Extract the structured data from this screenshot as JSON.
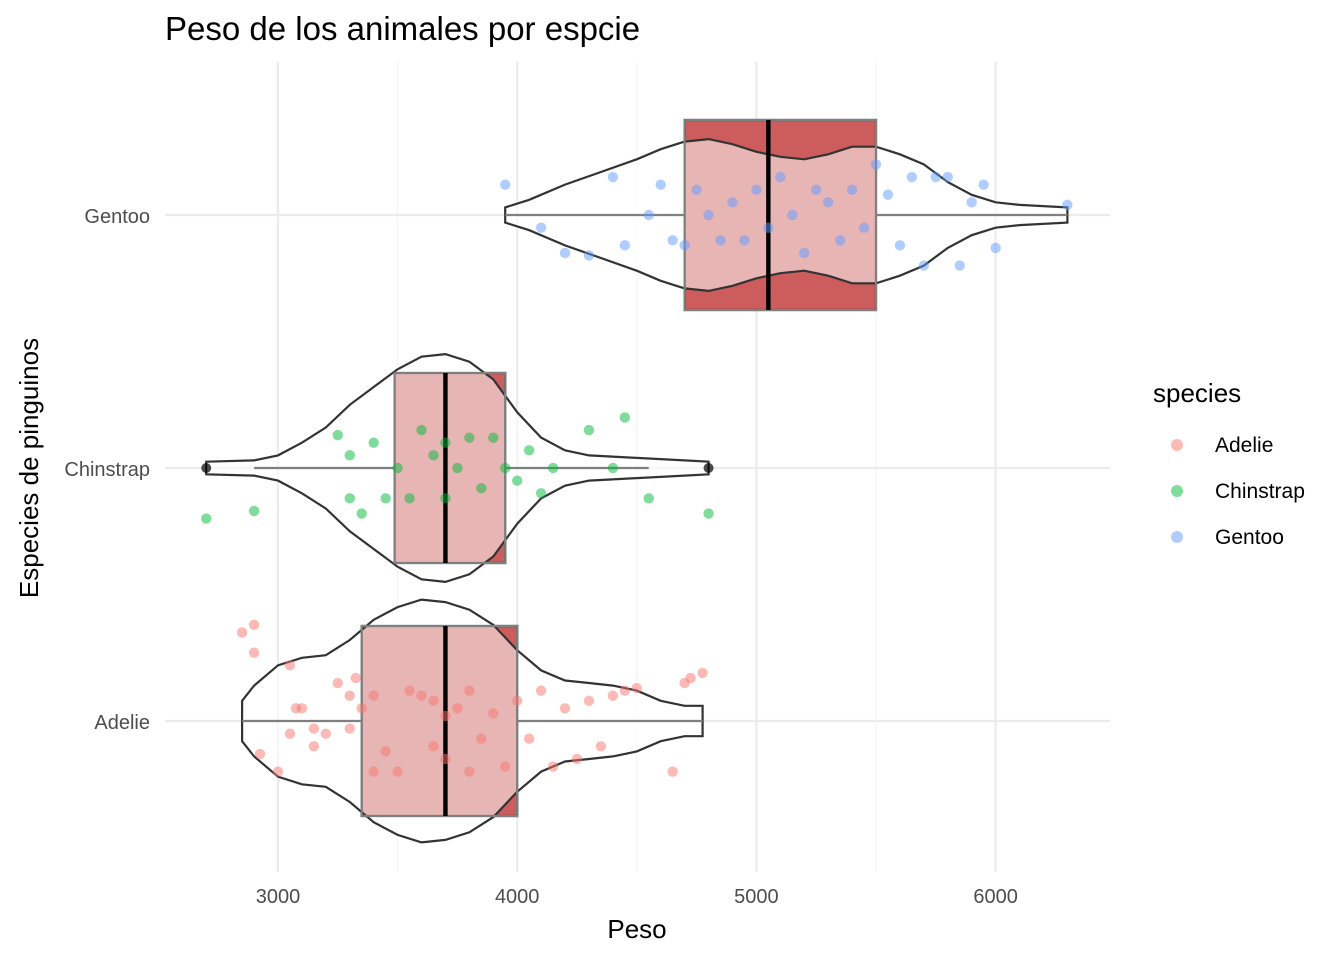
{
  "chart_data": {
    "type": "box-violin-jitter",
    "title": "Peso de los animales por espcie",
    "xlabel": "Peso",
    "ylabel": "Especies de pinguinos",
    "xlim": [
      2500,
      6500
    ],
    "x_ticks": [
      3000,
      4000,
      5000,
      6000
    ],
    "categories": [
      "Adelie",
      "Chinstrap",
      "Gentoo"
    ],
    "grid": true,
    "legend": {
      "title": "species",
      "position": "right",
      "entries": [
        {
          "label": "Adelie",
          "color": "#F8766D"
        },
        {
          "label": "Chinstrap",
          "color": "#00BA38"
        },
        {
          "label": "Gentoo",
          "color": "#619CFF"
        }
      ]
    },
    "box_fill": "#CD5C5C",
    "series": [
      {
        "name": "Adelie",
        "color": "#F8766D",
        "box_outer": {
          "q1": 3350,
          "median": 3700,
          "q3": 4000
        },
        "box_inner": {
          "q1": 3350,
          "median": 3700,
          "q3": 4000
        },
        "whisker": [
          2850,
          4775
        ],
        "violin": [
          [
            2850,
            0.08
          ],
          [
            2900,
            0.14
          ],
          [
            3000,
            0.22
          ],
          [
            3100,
            0.25
          ],
          [
            3200,
            0.26
          ],
          [
            3300,
            0.32
          ],
          [
            3400,
            0.4
          ],
          [
            3500,
            0.45
          ],
          [
            3600,
            0.48
          ],
          [
            3700,
            0.47
          ],
          [
            3800,
            0.44
          ],
          [
            3900,
            0.38
          ],
          [
            4000,
            0.28
          ],
          [
            4100,
            0.2
          ],
          [
            4200,
            0.16
          ],
          [
            4300,
            0.15
          ],
          [
            4400,
            0.14
          ],
          [
            4500,
            0.12
          ],
          [
            4600,
            0.08
          ],
          [
            4700,
            0.06
          ],
          [
            4775,
            0.06
          ]
        ],
        "points": [
          [
            2850,
            0.35
          ],
          [
            2900,
            0.27
          ],
          [
            2900,
            0.38
          ],
          [
            2925,
            -0.13
          ],
          [
            3000,
            -0.2
          ],
          [
            3050,
            0.22
          ],
          [
            3050,
            -0.05
          ],
          [
            3075,
            0.05
          ],
          [
            3100,
            0.05
          ],
          [
            3150,
            -0.03
          ],
          [
            3150,
            -0.1
          ],
          [
            3200,
            -0.05
          ],
          [
            3250,
            0.15
          ],
          [
            3300,
            -0.03
          ],
          [
            3300,
            0.1
          ],
          [
            3325,
            0.17
          ],
          [
            3350,
            0.05
          ],
          [
            3400,
            -0.2
          ],
          [
            3400,
            0.1
          ],
          [
            3450,
            -0.12
          ],
          [
            3500,
            -0.2
          ],
          [
            3550,
            0.12
          ],
          [
            3600,
            0.1
          ],
          [
            3650,
            -0.1
          ],
          [
            3650,
            0.08
          ],
          [
            3700,
            -0.15
          ],
          [
            3700,
            0.02
          ],
          [
            3750,
            0.05
          ],
          [
            3800,
            -0.2
          ],
          [
            3800,
            0.12
          ],
          [
            3850,
            -0.07
          ],
          [
            3900,
            0.03
          ],
          [
            3950,
            -0.18
          ],
          [
            4000,
            0.08
          ],
          [
            4050,
            -0.07
          ],
          [
            4100,
            0.12
          ],
          [
            4150,
            -0.18
          ],
          [
            4200,
            0.05
          ],
          [
            4250,
            -0.15
          ],
          [
            4300,
            0.08
          ],
          [
            4350,
            -0.1
          ],
          [
            4400,
            0.1
          ],
          [
            4450,
            0.12
          ],
          [
            4500,
            0.13
          ],
          [
            4650,
            -0.2
          ],
          [
            4700,
            0.15
          ],
          [
            4725,
            0.17
          ],
          [
            4775,
            0.19
          ]
        ]
      },
      {
        "name": "Chinstrap",
        "color": "#00BA38",
        "box_outer": {
          "q1": 3487.5,
          "median": 3700,
          "q3": 3950
        },
        "box_inner": {
          "q1": 3487.5,
          "median": 3700,
          "q3": 3950
        },
        "whisker": [
          2900,
          4550
        ],
        "violin": [
          [
            2700,
            0.025
          ],
          [
            2900,
            0.03
          ],
          [
            3000,
            0.05
          ],
          [
            3100,
            0.1
          ],
          [
            3200,
            0.16
          ],
          [
            3300,
            0.25
          ],
          [
            3400,
            0.32
          ],
          [
            3500,
            0.39
          ],
          [
            3600,
            0.44
          ],
          [
            3700,
            0.45
          ],
          [
            3800,
            0.42
          ],
          [
            3900,
            0.35
          ],
          [
            4000,
            0.22
          ],
          [
            4100,
            0.12
          ],
          [
            4200,
            0.07
          ],
          [
            4300,
            0.05
          ],
          [
            4500,
            0.04
          ],
          [
            4800,
            0.025
          ]
        ],
        "points": [
          [
            2700,
            -0.2
          ],
          [
            2900,
            -0.17
          ],
          [
            3250,
            0.13
          ],
          [
            3300,
            0.05
          ],
          [
            3300,
            -0.12
          ],
          [
            3350,
            -0.18
          ],
          [
            3400,
            0.1
          ],
          [
            3450,
            -0.12
          ],
          [
            3500,
            0.0
          ],
          [
            3550,
            -0.12
          ],
          [
            3600,
            0.15
          ],
          [
            3650,
            0.05
          ],
          [
            3700,
            0.1
          ],
          [
            3700,
            -0.12
          ],
          [
            3750,
            0.0
          ],
          [
            3800,
            0.12
          ],
          [
            3850,
            -0.08
          ],
          [
            3900,
            0.12
          ],
          [
            3950,
            0.0
          ],
          [
            4000,
            -0.05
          ],
          [
            4050,
            0.07
          ],
          [
            4100,
            -0.1
          ],
          [
            4150,
            0.0
          ],
          [
            4300,
            0.15
          ],
          [
            4400,
            0.0
          ],
          [
            4450,
            0.2
          ],
          [
            4550,
            -0.12
          ],
          [
            4800,
            -0.18
          ]
        ]
      },
      {
        "name": "Gentoo",
        "color": "#619CFF",
        "box_outer": {
          "q1": 4700,
          "median": 5050,
          "q3": 5500
        },
        "box_inner": {
          "q1": 4700,
          "median": 5050,
          "q3": 5500
        },
        "whisker": [
          3950,
          6300
        ],
        "violin": [
          [
            3950,
            0.03
          ],
          [
            4050,
            0.06
          ],
          [
            4200,
            0.12
          ],
          [
            4350,
            0.17
          ],
          [
            4500,
            0.22
          ],
          [
            4600,
            0.26
          ],
          [
            4700,
            0.29
          ],
          [
            4800,
            0.3
          ],
          [
            4900,
            0.28
          ],
          [
            5000,
            0.25
          ],
          [
            5100,
            0.23
          ],
          [
            5200,
            0.22
          ],
          [
            5300,
            0.24
          ],
          [
            5400,
            0.27
          ],
          [
            5500,
            0.27
          ],
          [
            5600,
            0.24
          ],
          [
            5700,
            0.2
          ],
          [
            5800,
            0.13
          ],
          [
            5900,
            0.08
          ],
          [
            6000,
            0.05
          ],
          [
            6100,
            0.04
          ],
          [
            6300,
            0.03
          ]
        ],
        "points": [
          [
            3950,
            0.12
          ],
          [
            4100,
            -0.05
          ],
          [
            4200,
            -0.15
          ],
          [
            4300,
            -0.16
          ],
          [
            4400,
            0.15
          ],
          [
            4450,
            -0.12
          ],
          [
            4550,
            0.0
          ],
          [
            4600,
            0.12
          ],
          [
            4650,
            -0.1
          ],
          [
            4700,
            -0.12
          ],
          [
            4750,
            0.1
          ],
          [
            4800,
            0.0
          ],
          [
            4850,
            -0.1
          ],
          [
            4900,
            0.05
          ],
          [
            4950,
            -0.1
          ],
          [
            5000,
            0.1
          ],
          [
            5050,
            -0.05
          ],
          [
            5100,
            0.15
          ],
          [
            5150,
            0.0
          ],
          [
            5200,
            -0.15
          ],
          [
            5250,
            0.1
          ],
          [
            5300,
            0.05
          ],
          [
            5350,
            -0.1
          ],
          [
            5400,
            0.1
          ],
          [
            5450,
            -0.05
          ],
          [
            5500,
            0.2
          ],
          [
            5550,
            0.08
          ],
          [
            5600,
            -0.12
          ],
          [
            5650,
            0.15
          ],
          [
            5700,
            -0.2
          ],
          [
            5750,
            0.15
          ],
          [
            5800,
            0.15
          ],
          [
            5850,
            -0.2
          ],
          [
            5900,
            0.05
          ],
          [
            5950,
            0.12
          ],
          [
            6000,
            -0.13
          ],
          [
            6300,
            0.04
          ]
        ]
      }
    ]
  }
}
